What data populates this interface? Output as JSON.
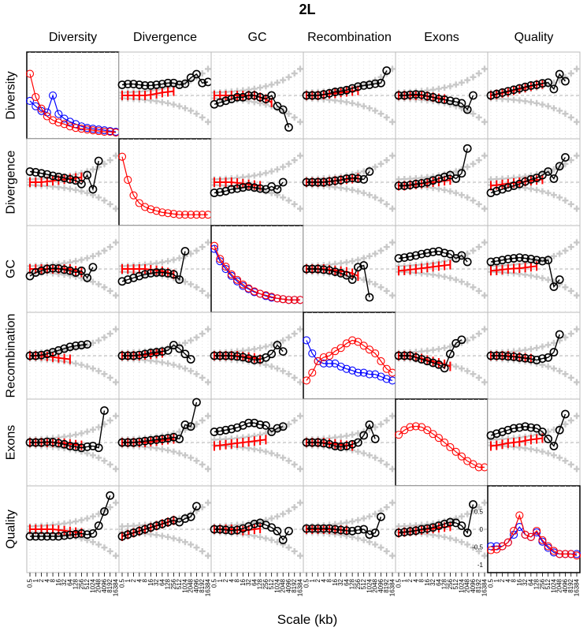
{
  "chart_data": {
    "type": "line",
    "title": "2L",
    "xlabel": "Scale (kb)",
    "variables": [
      "Diversity",
      "Divergence",
      "GC",
      "Recombination",
      "Exons",
      "Quality"
    ],
    "x_ticks": [
      "0.5",
      "1",
      "2",
      "4",
      "8",
      "16",
      "32",
      "64",
      "128",
      "256",
      "512",
      "1024",
      "2048",
      "4096",
      "8192",
      "16384"
    ],
    "y_ticks_quality_col": [
      {
        "value": 0.5,
        "label": "0.5"
      },
      {
        "value": 0,
        "label": "0"
      },
      {
        "value": -0.5,
        "label": "-0.5"
      },
      {
        "value": -1,
        "label": "-1"
      }
    ],
    "colors": {
      "black": "#000000",
      "red": "#ff0000",
      "blue": "#0000ff",
      "gray": "#c8c8c8"
    },
    "diagonal": [
      {
        "red": [
          0.8,
          0.5,
          0.35,
          0.25,
          0.2,
          0.17,
          0.15,
          0.12,
          0.1,
          0.09,
          0.08,
          0.07,
          0.06,
          0.05,
          0.05,
          0.04
        ],
        "blue": [
          0.45,
          0.38,
          0.32,
          0.3,
          0.52,
          0.28,
          0.22,
          0.18,
          0.15,
          0.12,
          0.1,
          0.09,
          0.08,
          0.07,
          0.06,
          0.05
        ]
      },
      {
        "red": [
          0.85,
          0.55,
          0.35,
          0.25,
          0.2,
          0.17,
          0.15,
          0.13,
          0.12,
          0.11,
          0.1,
          0.1,
          0.1,
          0.1,
          0.1,
          0.1
        ],
        "blue": null
      },
      {
        "red": [
          0.82,
          0.65,
          0.55,
          0.45,
          0.38,
          0.32,
          0.27,
          0.23,
          0.2,
          0.18,
          0.16,
          0.14,
          0.13,
          0.12,
          0.12,
          0.12
        ],
        "blue": [
          0.78,
          0.62,
          0.52,
          0.43,
          0.36,
          0.3,
          0.26,
          0.22,
          0.2,
          0.17,
          0.15,
          0.14,
          0.13,
          0.12,
          0.12,
          0.12
        ]
      },
      {
        "red": [
          0.2,
          0.3,
          0.45,
          0.5,
          0.52,
          0.58,
          0.62,
          0.68,
          0.72,
          0.7,
          0.65,
          0.6,
          0.55,
          0.45,
          0.35,
          0.3
        ],
        "blue": [
          0.72,
          0.55,
          0.45,
          0.42,
          0.42,
          0.42,
          0.38,
          0.35,
          0.33,
          0.3,
          0.3,
          0.28,
          0.28,
          0.25,
          0.22,
          0.2
        ]
      },
      {
        "red": [
          0.62,
          0.68,
          0.72,
          0.73,
          0.72,
          0.68,
          0.63,
          0.58,
          0.52,
          0.46,
          0.4,
          0.34,
          0.28,
          0.24,
          0.2,
          0.2
        ],
        "blue": null
      },
      {
        "red": [
          0.25,
          0.26,
          0.3,
          0.35,
          0.5,
          0.7,
          0.45,
          0.42,
          0.5,
          0.38,
          0.3,
          0.24,
          0.2,
          0.2,
          0.2,
          0.18
        ],
        "blue": [
          0.3,
          0.3,
          0.3,
          0.35,
          0.45,
          0.55,
          0.45,
          0.42,
          0.48,
          0.36,
          0.28,
          0.22,
          0.2,
          0.2,
          0.2,
          0.2
        ]
      }
    ],
    "offdiag": [
      [
        null,
        {
          "black": [
            0.3,
            0.32,
            0.32,
            0.3,
            0.28,
            0.28,
            0.3,
            0.32,
            0.35,
            0.35,
            0.3,
            0.33,
            0.5,
            0.6,
            0.35,
            0.38
          ],
          "red": [
            0,
            0,
            0,
            0,
            0,
            0.02,
            0.05,
            0.08,
            0.1,
            0.12
          ]
        },
        {
          "black": [
            -0.25,
            -0.2,
            -0.15,
            -0.1,
            -0.05,
            -0.05,
            0,
            0,
            -0.05,
            -0.1,
            0,
            -0.3,
            -0.4,
            -0.9
          ],
          "red": [
            0,
            0,
            0,
            0,
            0,
            0,
            0,
            0,
            -0.05,
            -0.1,
            -0.2
          ]
        },
        {
          "black": [
            0,
            0,
            0,
            0.03,
            0.06,
            0.1,
            0.12,
            0.15,
            0.2,
            0.25,
            0.28,
            0.3,
            0.33,
            0.35,
            0.7
          ],
          "red": [
            0,
            0,
            0,
            0.02,
            0.04,
            0.06,
            0.08,
            0.1,
            0.12,
            0.14
          ]
        },
        {
          "black": [
            0,
            0,
            0.02,
            0.03,
            0.02,
            -0.02,
            -0.05,
            -0.1,
            -0.12,
            -0.15,
            -0.18,
            -0.22,
            -0.4,
            0
          ],
          "red": [
            0,
            0,
            0,
            0,
            0,
            -0.02,
            -0.05,
            -0.08,
            -0.1
          ]
        },
        {
          "black": [
            0,
            0.04,
            0.08,
            0.12,
            0.16,
            0.2,
            0.24,
            0.28,
            0.3,
            0.34,
            0.36,
            0.18,
            0.6,
            0.4
          ],
          "red": [
            0,
            0.03,
            0.07,
            0.1,
            0.14,
            0.18,
            0.22,
            0.26,
            0.3,
            0.32
          ]
        }
      ],
      [
        {
          "black": [
            0.3,
            0.28,
            0.25,
            0.22,
            0.18,
            0.15,
            0.12,
            0.08,
            0.05,
            -0.05,
            0.2,
            -0.2,
            0.6
          ],
          "red": [
            0,
            0,
            0,
            0.02,
            0.04,
            0.06,
            0.08,
            0.1,
            0.12,
            0.14
          ]
        },
        null,
        {
          "black": [
            -0.3,
            -0.28,
            -0.25,
            -0.2,
            -0.18,
            -0.15,
            -0.12,
            -0.15,
            -0.18,
            -0.2,
            -0.12,
            -0.2,
            0
          ],
          "red": [
            0,
            0,
            0,
            0,
            -0.02,
            -0.04,
            -0.06,
            -0.08,
            -0.1
          ]
        },
        {
          "black": [
            0,
            0,
            0,
            0,
            0.02,
            0.04,
            0.06,
            0.1,
            0.12,
            0.1,
            0.08,
            0.3
          ],
          "red": [
            0,
            0,
            0,
            0,
            0.02,
            0.04,
            0.06,
            0.08,
            0.1,
            0.12
          ]
        },
        {
          "black": [
            -0.1,
            -0.1,
            -0.08,
            -0.05,
            -0.03,
            0,
            0.05,
            0.1,
            0.15,
            0.2,
            0.1,
            0.25,
            0.95
          ],
          "red": [
            -0.1,
            -0.1,
            -0.08,
            -0.06,
            -0.04,
            -0.02,
            0,
            0.02,
            0.04,
            0.06
          ]
        },
        {
          "black": [
            -0.3,
            -0.25,
            -0.2,
            -0.15,
            -0.1,
            -0.05,
            0.02,
            0.08,
            0.12,
            0.2,
            0.3,
            0.1,
            0.45,
            0.7
          ],
          "red": [
            -0.1,
            -0.08,
            -0.06,
            -0.04,
            -0.02,
            0,
            0.02,
            0.04,
            0.06,
            0.08
          ]
        }
      ],
      [
        {
          "black": [
            -0.2,
            -0.1,
            -0.05,
            0,
            0.02,
            0.01,
            -0.02,
            -0.05,
            -0.1,
            -0.05,
            -0.25,
            0.05
          ],
          "red": [
            0,
            0,
            0,
            0,
            0,
            0,
            0,
            0,
            -0.05,
            -0.1
          ]
        },
        {
          "black": [
            -0.35,
            -0.3,
            -0.25,
            -0.2,
            -0.15,
            -0.12,
            -0.1,
            -0.1,
            -0.12,
            -0.15,
            -0.3,
            0.5
          ],
          "red": [
            0,
            0,
            0,
            0,
            0,
            -0.02,
            -0.04,
            -0.06,
            -0.1,
            -0.15
          ]
        },
        null,
        {
          "black": [
            0,
            0,
            0,
            -0.02,
            -0.04,
            -0.08,
            -0.12,
            -0.18,
            -0.3,
            0.05,
            0.1,
            -0.8
          ],
          "red": [
            0,
            0,
            0,
            0,
            -0.02,
            -0.04,
            -0.06,
            -0.08,
            -0.12,
            -0.2
          ]
        },
        {
          "black": [
            0.3,
            0.32,
            0.35,
            0.38,
            0.42,
            0.45,
            0.48,
            0.5,
            0.45,
            0.42,
            0.3,
            0.38,
            0.2
          ],
          "red": [
            -0.05,
            -0.04,
            -0.02,
            0,
            0.02,
            0.04,
            0.06,
            0.08,
            0.1,
            0.12
          ]
        },
        {
          "black": [
            0.2,
            0.22,
            0.25,
            0.28,
            0.3,
            0.32,
            0.3,
            0.28,
            0.25,
            0.22,
            0.25,
            -0.5,
            -0.3
          ],
          "red": [
            -0.05,
            -0.04,
            -0.02,
            0,
            0.01,
            0.02,
            0.04,
            0.06,
            0.08
          ]
        }
      ],
      [
        {
          "black": [
            0,
            0,
            0.02,
            0.05,
            0.1,
            0.15,
            0.2,
            0.25,
            0.28,
            0.3,
            0.32
          ],
          "red": [
            0,
            0,
            0,
            -0.02,
            -0.04,
            -0.06,
            -0.08,
            -0.1
          ]
        },
        {
          "black": [
            0,
            0,
            0,
            0.02,
            0.05,
            0.08,
            0.1,
            0.12,
            0.15,
            0.3,
            0.2,
            0.05,
            -0.1
          ],
          "red": [
            0,
            0,
            0,
            0,
            0.02,
            0.04,
            0.06,
            0.08
          ]
        },
        {
          "black": [
            0,
            0,
            0,
            0,
            -0.02,
            -0.04,
            -0.08,
            -0.12,
            -0.1,
            -0.05,
            0.05,
            0.3,
            0.12
          ],
          "red": [
            0,
            0,
            0,
            0,
            0,
            -0.02,
            -0.04,
            -0.06,
            -0.1
          ]
        },
        null,
        {
          "black": [
            0,
            0,
            0,
            -0.05,
            -0.1,
            -0.15,
            -0.2,
            -0.25,
            -0.35,
            0.05,
            0.35,
            0.45
          ],
          "red": [
            0,
            0,
            0,
            -0.04,
            -0.08,
            -0.12,
            -0.16,
            -0.2,
            -0.24,
            -0.3
          ]
        },
        {
          "black": [
            0,
            0,
            0,
            -0.02,
            -0.03,
            -0.05,
            -0.07,
            -0.09,
            -0.12,
            -0.08,
            -0.05,
            0.1,
            0.6
          ],
          "red": [
            0,
            0,
            0,
            0,
            -0.02,
            -0.04,
            -0.06,
            -0.08
          ]
        }
      ],
      [
        {
          "black": [
            0,
            0,
            0,
            0.02,
            0.01,
            -0.02,
            -0.05,
            -0.1,
            -0.12,
            -0.15,
            -0.12,
            -0.1,
            -0.15,
            0.9
          ],
          "red": [
            0,
            0,
            0,
            0,
            0,
            0,
            -0.02,
            -0.04,
            -0.06,
            -0.08
          ]
        },
        {
          "black": [
            0,
            0,
            0,
            0.02,
            0.04,
            0.06,
            0.08,
            0.1,
            0.12,
            0.15,
            0.1,
            0.5,
            0.45,
            1.2
          ],
          "red": [
            0,
            0,
            0,
            0,
            0,
            0.02,
            0.04,
            0.06,
            0.08,
            0.1
          ]
        },
        {
          "black": [
            0.3,
            0.32,
            0.35,
            0.38,
            0.42,
            0.48,
            0.55,
            0.55,
            0.5,
            0.48,
            0.3,
            0.4,
            0.45
          ],
          "red": [
            -0.1,
            -0.08,
            -0.06,
            -0.04,
            -0.02,
            0,
            0.02,
            0.04,
            0.06,
            0.08
          ]
        },
        {
          "black": [
            0,
            0,
            0,
            -0.02,
            -0.05,
            -0.1,
            -0.12,
            -0.1,
            -0.05,
            0,
            0.2,
            0.5,
            0.1
          ],
          "red": [
            0,
            0,
            0,
            0,
            -0.02,
            -0.04,
            -0.06,
            -0.08,
            -0.1
          ]
        },
        null,
        {
          "black": [
            0.2,
            0.25,
            0.3,
            0.35,
            0.4,
            0.42,
            0.45,
            0.42,
            0.4,
            0.3,
            0.1,
            -0.1,
            0.35,
            0.8
          ],
          "red": [
            -0.1,
            -0.08,
            -0.05,
            -0.02,
            0,
            0.02,
            0.05,
            0.08,
            0.1,
            0.12
          ]
        }
      ],
      [
        {
          "black": [
            -0.2,
            -0.2,
            -0.2,
            -0.2,
            -0.2,
            -0.2,
            -0.18,
            -0.16,
            -0.14,
            -0.12,
            -0.15,
            -0.12,
            0.1,
            0.5,
            0.95
          ],
          "red": [
            0,
            0,
            0,
            0,
            0,
            -0.02,
            -0.04,
            -0.06,
            -0.08,
            -0.1
          ]
        },
        {
          "black": [
            -0.2,
            -0.15,
            -0.1,
            -0.05,
            0,
            0.05,
            0.1,
            0.15,
            0.2,
            0.25,
            0.2,
            0.3,
            0.35,
            0.65
          ],
          "red": [
            -0.2,
            -0.15,
            -0.1,
            -0.05,
            0,
            0.05,
            0.1,
            0.15,
            0.2,
            0.25
          ]
        },
        {
          "black": [
            0,
            0,
            -0.02,
            -0.04,
            -0.02,
            0.02,
            0.08,
            0.15,
            0.18,
            0.12,
            0.05,
            -0.05,
            -0.3,
            -0.05
          ],
          "red": [
            0,
            0,
            0,
            0,
            -0.02,
            -0.04,
            -0.02,
            0,
            0.02
          ]
        },
        {
          "black": [
            0.02,
            0.02,
            0.02,
            0.02,
            0.02,
            0,
            -0.02,
            -0.04,
            -0.05,
            -0.02,
            0,
            -0.15,
            -0.1,
            0.35
          ],
          "red": [
            0,
            0,
            0,
            0,
            0,
            -0.01,
            -0.02,
            -0.03
          ]
        },
        {
          "black": [
            -0.1,
            -0.08,
            -0.06,
            -0.04,
            0,
            0.02,
            0.05,
            0.1,
            0.15,
            0.2,
            0.18,
            0.1,
            -0.1,
            0.7
          ],
          "red": [
            -0.1,
            -0.08,
            -0.06,
            -0.04,
            -0.02,
            0,
            0.02,
            0.04,
            0.06,
            0.08
          ]
        },
        null
      ]
    ]
  }
}
